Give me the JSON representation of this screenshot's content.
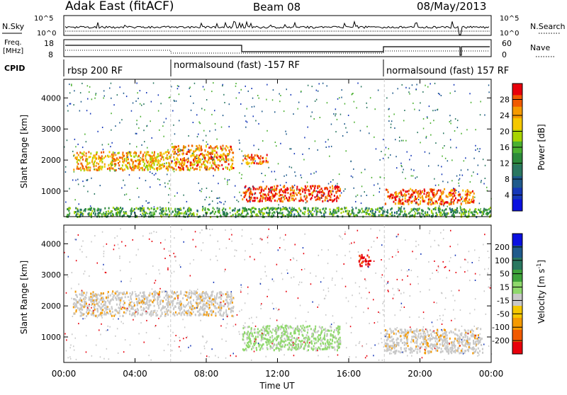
{
  "header": {
    "station": "Adak East (fitACF)",
    "beam": "Beam 08",
    "date": "08/May/2013"
  },
  "nsky_panel": {
    "label": "N.Sky",
    "left_ticks": [
      "10^5",
      "10^0"
    ],
    "right_label": "N.Search",
    "right_ticks": [
      "10^5",
      "10^0"
    ]
  },
  "freq_panel": {
    "label_line1": "Freq.",
    "label_line2": "[MHz]",
    "left_ticks": [
      "18",
      "8"
    ],
    "right_label": "Nave",
    "right_ticks": [
      "60",
      "0"
    ]
  },
  "cpid": {
    "label": "CPID",
    "segments": [
      {
        "text": "rbsp 200 RF",
        "start_hour": 0
      },
      {
        "text": "normalsound (fast) -157 RF",
        "start_hour": 6
      },
      {
        "text": "normalsound (fast) 157 RF",
        "start_hour": 18
      }
    ]
  },
  "power_colorbar": {
    "label": "Power [dB]",
    "ticks": [
      "28",
      "24",
      "20",
      "16",
      "12",
      "8",
      "4"
    ],
    "colors": [
      "#e8000b",
      "#f15a00",
      "#f59a00",
      "#f5c800",
      "#a8d400",
      "#4bb030",
      "#2c8a3a",
      "#2a7760",
      "#1f5a8c",
      "#1537b8",
      "#0a10e0"
    ]
  },
  "velocity_colorbar": {
    "label": "Velocity [m s",
    "label_sup": "-1",
    "label_close": "]",
    "ticks": [
      "200",
      "100",
      "50",
      "15",
      "-15",
      "-50",
      "-100",
      "-200"
    ],
    "colors": [
      "#0a10e0",
      "#1f5a8c",
      "#2a7760",
      "#3ea33a",
      "#8fd86c",
      "#c8c8c8",
      "#f5c800",
      "#f59a00",
      "#f15a00",
      "#e8000b"
    ]
  },
  "chart_data": [
    {
      "type": "heatmap",
      "title": "Power",
      "ylabel": "Slant Range [km]",
      "xlabel": "Time UT",
      "x_ticks": [
        "00:00",
        "04:00",
        "08:00",
        "12:00",
        "16:00",
        "20:00",
        "00:00"
      ],
      "y_ticks": [
        "1000",
        "2000",
        "3000",
        "4000"
      ],
      "xlim_hours": [
        0,
        24
      ],
      "ylim_km": [
        180,
        4600
      ],
      "bands": [
        {
          "t0": 0.5,
          "t1": 6.0,
          "r0": 1700,
          "r1": 2300,
          "dB": 20
        },
        {
          "t0": 6.0,
          "t1": 9.5,
          "r0": 1700,
          "r1": 2500,
          "dB": 22
        },
        {
          "t0": 10.0,
          "t1": 11.5,
          "r0": 1900,
          "r1": 2200,
          "dB": 24
        },
        {
          "t0": 10.0,
          "t1": 15.5,
          "r0": 700,
          "r1": 1200,
          "dB": 26
        },
        {
          "t0": 18.0,
          "t1": 23.0,
          "r0": 600,
          "r1": 1100,
          "dB": 24
        },
        {
          "t0": 0.0,
          "t1": 24.0,
          "r0": 200,
          "r1": 500,
          "dB": 10
        }
      ]
    },
    {
      "type": "heatmap",
      "title": "Velocity",
      "ylabel": "Slant Range [km]",
      "xlabel": "Time UT",
      "x_ticks": [
        "00:00",
        "04:00",
        "08:00",
        "12:00",
        "16:00",
        "20:00",
        "00:00"
      ],
      "y_ticks": [
        "1000",
        "2000",
        "3000",
        "4000"
      ],
      "xlim_hours": [
        0,
        24
      ],
      "ylim_km": [
        180,
        4600
      ],
      "bands": [
        {
          "t0": 0.5,
          "t1": 9.5,
          "r0": 1700,
          "r1": 2500,
          "ms": 0
        },
        {
          "t0": 10.0,
          "t1": 15.5,
          "r0": 600,
          "r1": 1400,
          "ms": 40
        },
        {
          "t0": 16.5,
          "t1": 17.2,
          "r0": 3300,
          "r1": 3700,
          "ms": -200
        },
        {
          "t0": 18.0,
          "t1": 23.5,
          "r0": 500,
          "r1": 1300,
          "ms": 0
        }
      ]
    }
  ]
}
